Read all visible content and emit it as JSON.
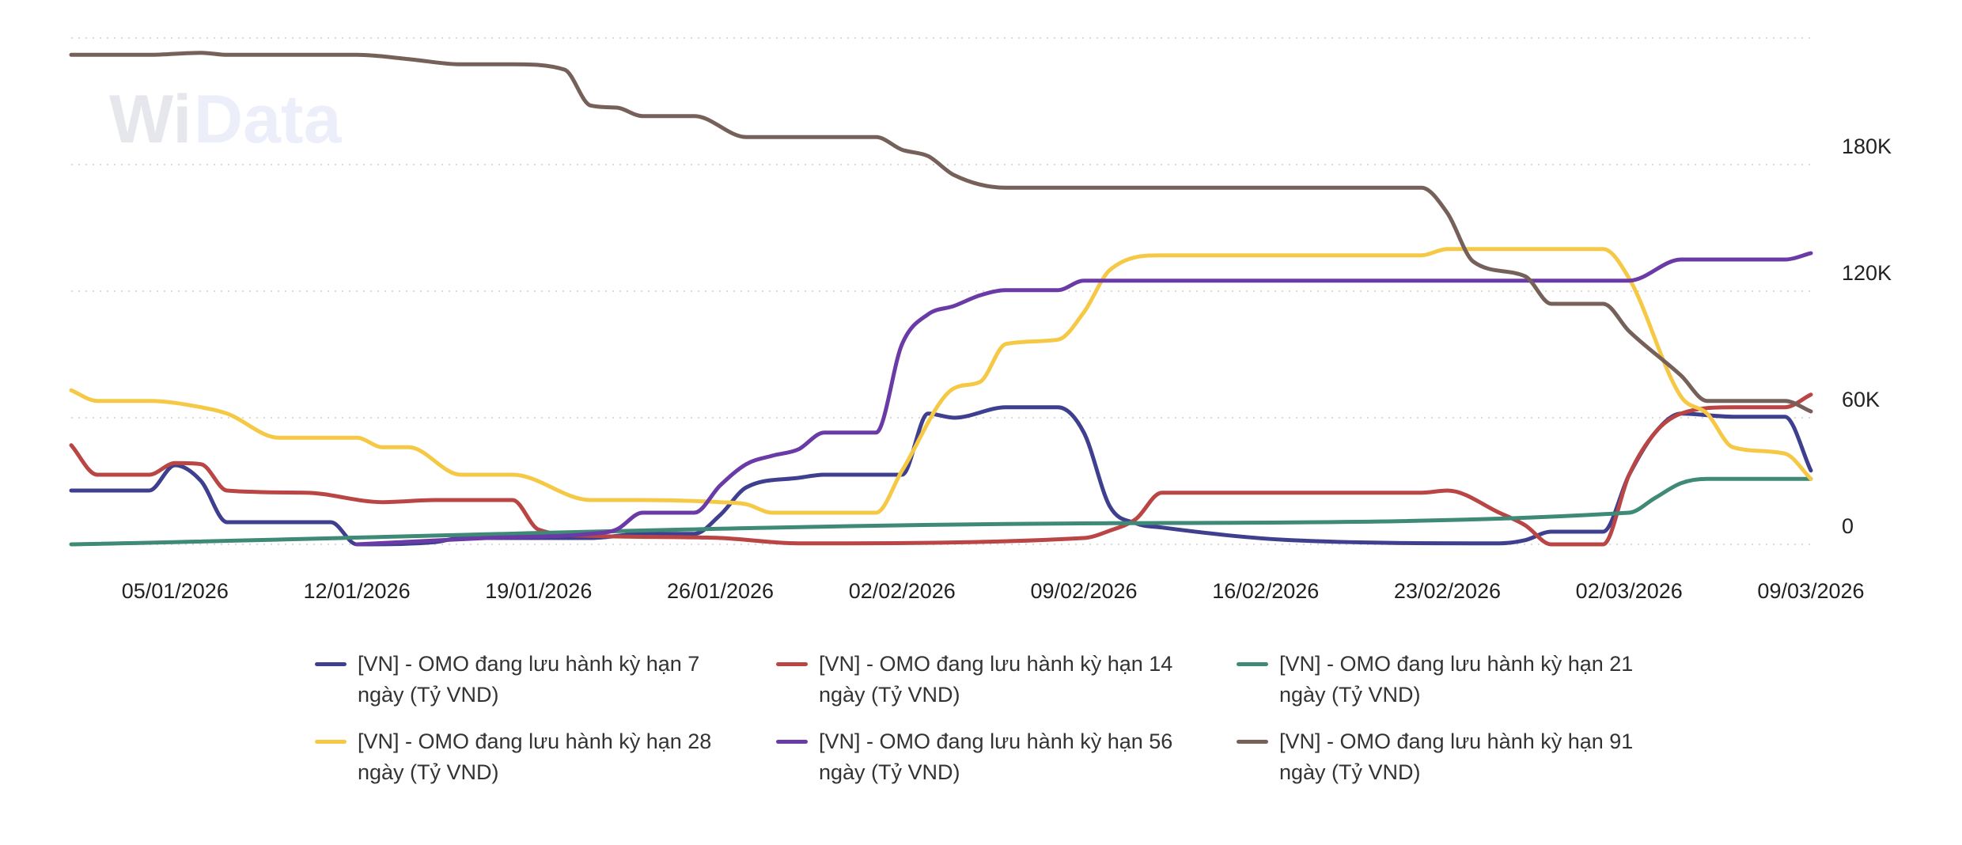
{
  "watermark": {
    "text_a": "Wi",
    "text_b": "Data"
  },
  "chart_data": {
    "type": "line",
    "title": "",
    "xlabel": "",
    "ylabel": "",
    "x_range": [
      "01/01/2026",
      "09/03/2026"
    ],
    "ylim": [
      0,
      240000
    ],
    "y_ticks": [
      {
        "value": 0,
        "label": "0"
      },
      {
        "value": 60000,
        "label": "60K"
      },
      {
        "value": 120000,
        "label": "120K"
      },
      {
        "value": 180000,
        "label": "180K"
      },
      {
        "value": 240000,
        "label": ""
      }
    ],
    "x_ticks": [
      "05/01/2026",
      "12/01/2026",
      "19/01/2026",
      "26/01/2026",
      "02/02/2026",
      "09/02/2026",
      "16/02/2026",
      "23/02/2026",
      "02/03/2026",
      "09/03/2026"
    ],
    "y_axis_position": "right",
    "grid": "horizontal dotted",
    "legend_position": "bottom",
    "series": [
      {
        "name": "[VN] - OMO đang lưu hành kỳ hạn 7 ngày (Tỷ VND)",
        "color": "#3f3f8f",
        "points": [
          [
            "01/01/2026",
            25500
          ],
          [
            "04/01/2026",
            25500
          ],
          [
            "05/01/2026",
            37500
          ],
          [
            "06/01/2026",
            30000
          ],
          [
            "07/01/2026",
            10500
          ],
          [
            "11/01/2026",
            10500
          ],
          [
            "12/01/2026",
            0
          ],
          [
            "15/01/2026",
            1000
          ],
          [
            "16/01/2026",
            3000
          ],
          [
            "21/01/2026",
            3000
          ],
          [
            "23/01/2026",
            5000
          ],
          [
            "25/01/2026",
            5000
          ],
          [
            "26/01/2026",
            14000
          ],
          [
            "27/01/2026",
            27000
          ],
          [
            "29/01/2026",
            31500
          ],
          [
            "30/01/2026",
            33000
          ],
          [
            "02/02/2026",
            33000
          ],
          [
            "03/02/2026",
            62000
          ],
          [
            "04/02/2026",
            60000
          ],
          [
            "06/02/2026",
            65000
          ],
          [
            "08/02/2026",
            65000
          ],
          [
            "09/02/2026",
            53000
          ],
          [
            "10/02/2026",
            18000
          ],
          [
            "11/02/2026",
            10000
          ],
          [
            "12/02/2026",
            8000
          ],
          [
            "17/02/2026",
            2000
          ],
          [
            "25/02/2026",
            500
          ],
          [
            "26/02/2026",
            2000
          ],
          [
            "27/02/2026",
            6000
          ],
          [
            "01/03/2026",
            6000
          ],
          [
            "02/03/2026",
            33000
          ],
          [
            "03/03/2026",
            53000
          ],
          [
            "04/03/2026",
            62000
          ],
          [
            "06/03/2026",
            60500
          ],
          [
            "08/03/2026",
            60500
          ],
          [
            "09/03/2026",
            35000
          ]
        ]
      },
      {
        "name": "[VN] - OMO đang lưu hành kỳ hạn 14 ngày (Tỷ VND)",
        "color": "#b94545",
        "points": [
          [
            "01/01/2026",
            47000
          ],
          [
            "02/01/2026",
            33000
          ],
          [
            "04/01/2026",
            33000
          ],
          [
            "05/01/2026",
            38500
          ],
          [
            "06/01/2026",
            38000
          ],
          [
            "07/01/2026",
            25500
          ],
          [
            "10/01/2026",
            24500
          ],
          [
            "13/01/2026",
            20000
          ],
          [
            "15/01/2026",
            21000
          ],
          [
            "18/01/2026",
            21000
          ],
          [
            "19/01/2026",
            7000
          ],
          [
            "21/01/2026",
            4000
          ],
          [
            "26/01/2026",
            3000
          ],
          [
            "29/01/2026",
            500
          ],
          [
            "09/02/2026",
            3000
          ],
          [
            "10/02/2026",
            6500
          ],
          [
            "11/02/2026",
            12000
          ],
          [
            "12/02/2026",
            24500
          ],
          [
            "22/02/2026",
            24500
          ],
          [
            "23/02/2026",
            25500
          ],
          [
            "25/02/2026",
            15000
          ],
          [
            "26/02/2026",
            9000
          ],
          [
            "27/02/2026",
            0
          ],
          [
            "01/03/2026",
            0
          ],
          [
            "02/03/2026",
            33000
          ],
          [
            "03/03/2026",
            53000
          ],
          [
            "04/03/2026",
            62000
          ],
          [
            "06/03/2026",
            65000
          ],
          [
            "08/03/2026",
            65000
          ],
          [
            "09/03/2026",
            71000
          ]
        ]
      },
      {
        "name": "[VN] - OMO đang lưu hành kỳ hạn 21 ngày (Tỷ VND)",
        "color": "#3e8a77",
        "points": [
          [
            "01/01/2026",
            0
          ],
          [
            "10/02/2026",
            10000
          ],
          [
            "02/03/2026",
            15000
          ],
          [
            "03/03/2026",
            22000
          ],
          [
            "04/03/2026",
            29000
          ],
          [
            "05/03/2026",
            31000
          ],
          [
            "09/03/2026",
            31000
          ]
        ]
      },
      {
        "name": "[VN] - OMO đang lưu hành kỳ hạn 28 ngày (Tỷ VND)",
        "color": "#f5c945",
        "points": [
          [
            "01/01/2026",
            73000
          ],
          [
            "02/01/2026",
            68000
          ],
          [
            "04/01/2026",
            68000
          ],
          [
            "06/01/2026",
            65000
          ],
          [
            "07/01/2026",
            62000
          ],
          [
            "09/01/2026",
            50500
          ],
          [
            "12/01/2026",
            50500
          ],
          [
            "13/01/2026",
            46000
          ],
          [
            "14/01/2026",
            46000
          ],
          [
            "16/01/2026",
            33000
          ],
          [
            "18/01/2026",
            33000
          ],
          [
            "21/01/2026",
            21000
          ],
          [
            "23/01/2026",
            21000
          ],
          [
            "26/01/2026",
            20000
          ],
          [
            "27/01/2026",
            19000
          ],
          [
            "28/01/2026",
            15000
          ],
          [
            "01/02/2026",
            15000
          ],
          [
            "02/02/2026",
            35000
          ],
          [
            "04/02/2026",
            74000
          ],
          [
            "05/02/2026",
            77000
          ],
          [
            "06/02/2026",
            95000
          ],
          [
            "08/02/2026",
            97000
          ],
          [
            "09/02/2026",
            110000
          ],
          [
            "10/02/2026",
            130000
          ],
          [
            "12/02/2026",
            137000
          ],
          [
            "22/02/2026",
            137000
          ],
          [
            "23/02/2026",
            140000
          ],
          [
            "01/03/2026",
            140000
          ],
          [
            "02/03/2026",
            126000
          ],
          [
            "04/03/2026",
            70000
          ],
          [
            "05/03/2026",
            62000
          ],
          [
            "06/03/2026",
            46000
          ],
          [
            "08/03/2026",
            43000
          ],
          [
            "09/03/2026",
            31000
          ]
        ]
      },
      {
        "name": "[VN] - OMO đang lưu hành kỳ hạn 56 ngày (Tỷ VND)",
        "color": "#6a3aa6",
        "points": [
          [
            "12/01/2026",
            0
          ],
          [
            "17/01/2026",
            3000
          ],
          [
            "21/01/2026",
            5000
          ],
          [
            "22/01/2026",
            7000
          ],
          [
            "23/01/2026",
            15000
          ],
          [
            "25/01/2026",
            15000
          ],
          [
            "26/01/2026",
            28000
          ],
          [
            "27/01/2026",
            38000
          ],
          [
            "28/01/2026",
            42000
          ],
          [
            "29/01/2026",
            45000
          ],
          [
            "30/01/2026",
            53000
          ],
          [
            "01/02/2026",
            53000
          ],
          [
            "02/02/2026",
            95000
          ],
          [
            "03/02/2026",
            109000
          ],
          [
            "04/02/2026",
            113000
          ],
          [
            "05/02/2026",
            118000
          ],
          [
            "06/02/2026",
            120500
          ],
          [
            "08/02/2026",
            120500
          ],
          [
            "09/02/2026",
            125000
          ],
          [
            "02/03/2026",
            125000
          ],
          [
            "04/03/2026",
            135000
          ],
          [
            "08/03/2026",
            135000
          ],
          [
            "09/03/2026",
            138000
          ]
        ]
      },
      {
        "name": "[VN] - OMO đang lưu hành kỳ hạn 91 ngày (Tỷ VND)",
        "color": "#76615a",
        "points": [
          [
            "01/01/2026",
            232000
          ],
          [
            "04/01/2026",
            232000
          ],
          [
            "06/01/2026",
            233000
          ],
          [
            "07/01/2026",
            232000
          ],
          [
            "12/01/2026",
            232000
          ],
          [
            "14/01/2026",
            230000
          ],
          [
            "16/01/2026",
            227500
          ],
          [
            "18/01/2026",
            227500
          ],
          [
            "20/01/2026",
            225000
          ],
          [
            "21/01/2026",
            208000
          ],
          [
            "22/01/2026",
            207000
          ],
          [
            "23/01/2026",
            203000
          ],
          [
            "25/01/2026",
            203000
          ],
          [
            "27/01/2026",
            193000
          ],
          [
            "01/02/2026",
            193000
          ],
          [
            "02/02/2026",
            187000
          ],
          [
            "03/02/2026",
            184000
          ],
          [
            "04/02/2026",
            175000
          ],
          [
            "06/02/2026",
            169000
          ],
          [
            "22/02/2026",
            169000
          ],
          [
            "23/02/2026",
            157000
          ],
          [
            "24/02/2026",
            134000
          ],
          [
            "26/02/2026",
            127000
          ],
          [
            "27/02/2026",
            114000
          ],
          [
            "01/03/2026",
            114000
          ],
          [
            "02/03/2026",
            101000
          ],
          [
            "04/03/2026",
            80000
          ],
          [
            "05/03/2026",
            68000
          ],
          [
            "08/03/2026",
            68000
          ],
          [
            "09/03/2026",
            63000
          ]
        ]
      }
    ]
  }
}
